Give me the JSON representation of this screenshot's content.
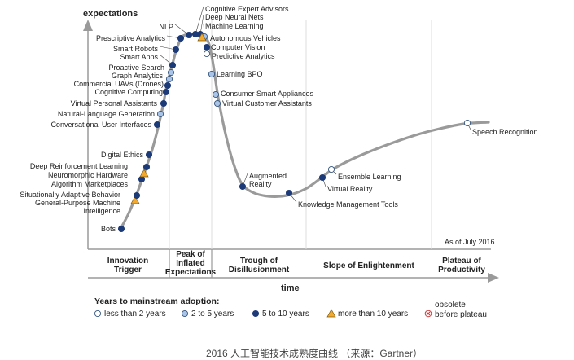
{
  "chart_data": {
    "type": "hype-cycle",
    "ylabel": "expectations",
    "xlabel": "time",
    "as_of": "As of July 2016",
    "caption": "2016 人工智能技术成熟度曲线 （来源：Gartner）",
    "phases": [
      {
        "name": "Innovation Trigger",
        "lines": [
          "Innovation",
          "Trigger"
        ]
      },
      {
        "name": "Peak of Inflated Expectations",
        "lines": [
          "Peak of",
          "Inflated",
          "Expectations"
        ]
      },
      {
        "name": "Trough of Disillusionment",
        "lines": [
          "Trough of",
          "Disillusionment"
        ]
      },
      {
        "name": "Slope of Enlightenment",
        "lines": [
          "Slope of Enlightenment"
        ]
      },
      {
        "name": "Plateau of Productivity",
        "lines": [
          "Plateau of",
          "Productivity"
        ]
      }
    ],
    "legend": {
      "title": "Years to mainstream adoption:",
      "items": [
        {
          "key": "lt2",
          "label": "less than 2 years",
          "marker": "circle-white"
        },
        {
          "key": "2to5",
          "label": "2 to 5 years",
          "marker": "circle-light"
        },
        {
          "key": "5to10",
          "label": "5 to 10 years",
          "marker": "circle-dark"
        },
        {
          "key": "gt10",
          "label": "more than 10 years",
          "marker": "triangle"
        },
        {
          "key": "obs",
          "label": "obsolete before plateau",
          "lines": [
            "obsolete",
            "before plateau"
          ],
          "marker": "x-circle"
        }
      ]
    },
    "colors": {
      "curve": "#9a9a9a",
      "dark": "#1c3a78",
      "light": "#a9c4e6",
      "triangle": "#f2a92e",
      "obsolete": "#d23a3a"
    },
    "technologies": [
      {
        "name": "Bots",
        "category": "5to10"
      },
      {
        "name": "General-Purpose Machine Intelligence",
        "lines": [
          "General-Purpose Machine",
          "Intelligence"
        ],
        "category": "gt10"
      },
      {
        "name": "Situationally Adaptive Behavior",
        "category": "5to10"
      },
      {
        "name": "Algorithm Marketplaces",
        "category": "5to10"
      },
      {
        "name": "Neuromorphic Hardware",
        "category": "gt10"
      },
      {
        "name": "Deep Reinforcement Learning",
        "category": "5to10"
      },
      {
        "name": "Digital Ethics",
        "category": "5to10"
      },
      {
        "name": "Conversational User Interfaces",
        "category": "5to10"
      },
      {
        "name": "Natural-Language Generation",
        "category": "2to5"
      },
      {
        "name": "Virtual Personal Assistants",
        "category": "5to10"
      },
      {
        "name": "Cognitive Computing",
        "category": "5to10"
      },
      {
        "name": "Commercial UAVs (Drones)",
        "category": "5to10"
      },
      {
        "name": "Graph Analytics",
        "category": "2to5"
      },
      {
        "name": "Proactive Search",
        "category": "2to5"
      },
      {
        "name": "Smart Apps",
        "category": "5to10"
      },
      {
        "name": "Smart Robots",
        "category": "5to10"
      },
      {
        "name": "Prescriptive Analytics",
        "category": "5to10"
      },
      {
        "name": "NLP",
        "category": "5to10"
      },
      {
        "name": "Cognitive Expert Advisors",
        "category": "5to10"
      },
      {
        "name": "Deep Neural Nets",
        "category": "5to10"
      },
      {
        "name": "Machine Learning",
        "category": "2to5"
      },
      {
        "name": "Autonomous Vehicles",
        "category": "gt10"
      },
      {
        "name": "Computer Vision",
        "category": "5to10"
      },
      {
        "name": "Predictive Analytics",
        "category": "lt2"
      },
      {
        "name": "Learning BPO",
        "category": "2to5"
      },
      {
        "name": "Consumer Smart Appliances",
        "category": "2to5"
      },
      {
        "name": "Virtual Customer Assistants",
        "category": "2to5"
      },
      {
        "name": "Augmented Reality",
        "lines": [
          "Augmented",
          "Reality"
        ],
        "category": "5to10"
      },
      {
        "name": "Knowledge Management Tools",
        "category": "5to10"
      },
      {
        "name": "Virtual Reality",
        "category": "5to10"
      },
      {
        "name": "Ensemble Learning",
        "category": "lt2"
      },
      {
        "name": "Speech Recognition",
        "category": "lt2"
      }
    ]
  }
}
